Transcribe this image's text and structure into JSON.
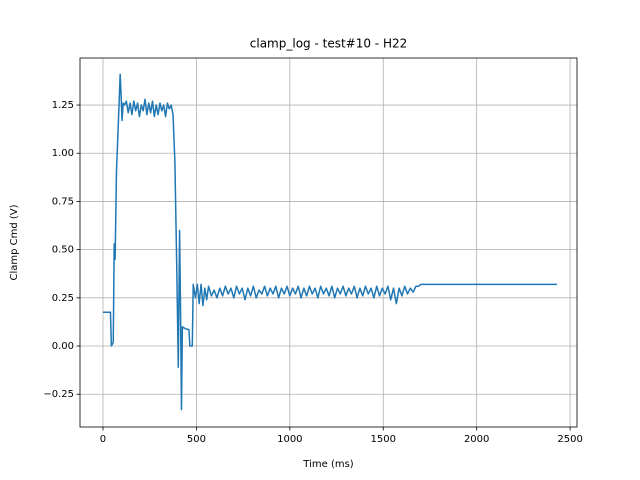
{
  "chart_data": {
    "type": "line",
    "title": "clamp_log - test#10 - H22",
    "xlabel": "Time (ms)",
    "ylabel": "Clamp Cmd (V)",
    "color": "#1f77b4",
    "grid": true,
    "xlim": [
      -123,
      2537
    ],
    "ylim": [
      -0.42,
      1.494
    ],
    "xticks": [
      0,
      500,
      1000,
      1500,
      2000,
      2500
    ],
    "yticks": [
      {
        "value": -0.25,
        "label": "−0.25"
      },
      {
        "value": 0,
        "label": "0.00"
      },
      {
        "value": 0.25,
        "label": "0.25"
      },
      {
        "value": 0.5,
        "label": "0.50"
      },
      {
        "value": 0.75,
        "label": "0.75"
      },
      {
        "value": 1,
        "label": "1.00"
      },
      {
        "value": 1.25,
        "label": "1.25"
      }
    ],
    "x": [
      0,
      40,
      45,
      55,
      60,
      65,
      72,
      82,
      92,
      97,
      102,
      108,
      115,
      125,
      135,
      145,
      155,
      165,
      175,
      185,
      195,
      205,
      215,
      225,
      235,
      245,
      255,
      265,
      275,
      285,
      295,
      305,
      315,
      325,
      335,
      345,
      355,
      365,
      375,
      385,
      395,
      403,
      410,
      415,
      420,
      425,
      440,
      460,
      465,
      478,
      483,
      495,
      505,
      515,
      525,
      535,
      545,
      555,
      565,
      580,
      595,
      610,
      625,
      640,
      655,
      670,
      685,
      700,
      715,
      730,
      745,
      760,
      775,
      790,
      805,
      820,
      835,
      850,
      865,
      880,
      895,
      910,
      925,
      940,
      955,
      970,
      985,
      1000,
      1015,
      1030,
      1045,
      1060,
      1075,
      1090,
      1105,
      1120,
      1135,
      1150,
      1165,
      1180,
      1195,
      1210,
      1225,
      1240,
      1255,
      1270,
      1285,
      1300,
      1315,
      1330,
      1345,
      1360,
      1375,
      1390,
      1405,
      1420,
      1435,
      1450,
      1465,
      1480,
      1495,
      1510,
      1525,
      1540,
      1555,
      1570,
      1585,
      1600,
      1615,
      1630,
      1645,
      1660,
      1675,
      1690,
      1700,
      2430
    ],
    "values": [
      0.175,
      0.175,
      0.0,
      0.02,
      0.53,
      0.45,
      0.9,
      1.15,
      1.41,
      1.3,
      1.17,
      1.26,
      1.25,
      1.27,
      1.21,
      1.26,
      1.2,
      1.27,
      1.22,
      1.26,
      1.19,
      1.25,
      1.22,
      1.28,
      1.2,
      1.26,
      1.21,
      1.27,
      1.19,
      1.25,
      1.2,
      1.26,
      1.22,
      1.25,
      1.19,
      1.26,
      1.23,
      1.25,
      1.2,
      0.95,
      0.4,
      -0.11,
      0.6,
      0.2,
      -0.33,
      0.1,
      0.09,
      0.085,
      0.0,
      0.0,
      0.32,
      0.25,
      0.32,
      0.22,
      0.32,
      0.21,
      0.3,
      0.24,
      0.31,
      0.26,
      0.29,
      0.25,
      0.3,
      0.26,
      0.31,
      0.27,
      0.3,
      0.25,
      0.31,
      0.27,
      0.3,
      0.24,
      0.3,
      0.26,
      0.31,
      0.25,
      0.29,
      0.27,
      0.31,
      0.26,
      0.3,
      0.27,
      0.31,
      0.25,
      0.3,
      0.27,
      0.31,
      0.26,
      0.3,
      0.27,
      0.31,
      0.25,
      0.3,
      0.26,
      0.31,
      0.27,
      0.3,
      0.25,
      0.31,
      0.27,
      0.3,
      0.26,
      0.31,
      0.25,
      0.3,
      0.27,
      0.31,
      0.26,
      0.3,
      0.27,
      0.31,
      0.25,
      0.3,
      0.26,
      0.31,
      0.27,
      0.3,
      0.25,
      0.31,
      0.26,
      0.3,
      0.27,
      0.31,
      0.24,
      0.3,
      0.22,
      0.3,
      0.26,
      0.31,
      0.27,
      0.3,
      0.28,
      0.31,
      0.31,
      0.32,
      0.32
    ]
  }
}
